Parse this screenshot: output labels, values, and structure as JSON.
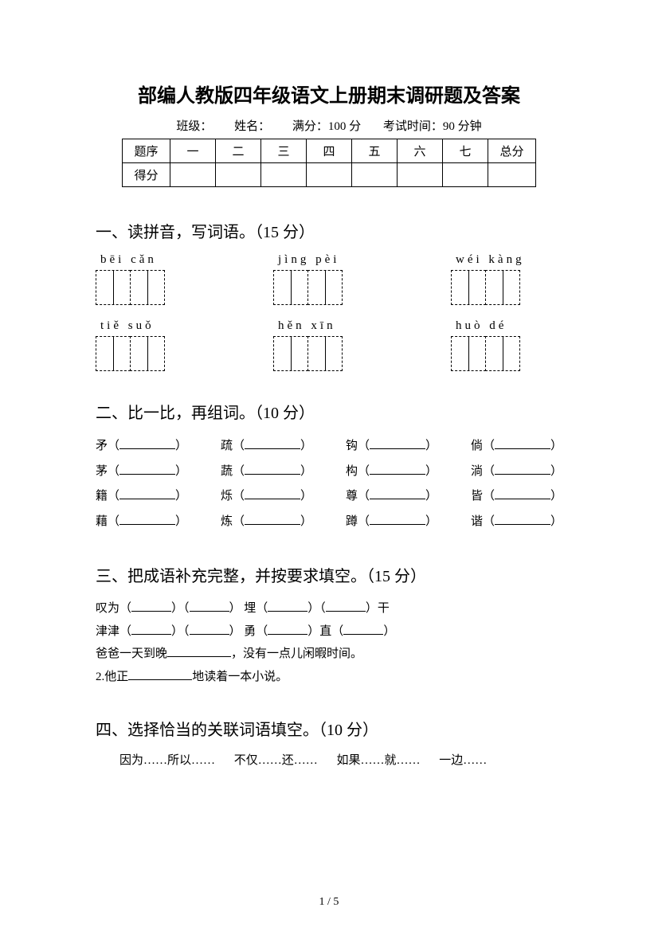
{
  "title": "部编人教版四年级语文上册期末调研题及答案",
  "meta": {
    "class_label": "班级：",
    "name_label": "姓名：",
    "fullmark_label": "满分：100 分",
    "time_label": "考试时间：90 分钟"
  },
  "score_table": {
    "header_label": "题序",
    "cols": [
      "一",
      "二",
      "三",
      "四",
      "五",
      "六",
      "七"
    ],
    "total_label": "总分",
    "score_label": "得分"
  },
  "section1": {
    "heading": "一、读拼音，写词语。（15 分）",
    "pinyin_row1": [
      "bēi  cǎn",
      "jìng  pèi",
      "wéi  kàng"
    ],
    "pinyin_row2": [
      "tiě  suǒ",
      "hěn  xīn",
      "huò  dé"
    ]
  },
  "section2": {
    "heading": "二、比一比，再组词。（10 分）",
    "rows": [
      [
        "矛",
        "疏",
        "钩",
        "倘"
      ],
      [
        "茅",
        "蔬",
        "构",
        "淌"
      ],
      [
        "籍",
        "烁",
        "尊",
        "皆"
      ],
      [
        "藉",
        "炼",
        "蹲",
        "谐"
      ]
    ]
  },
  "section3": {
    "heading": "三、把成语补充完整，并按要求填空。（15 分）",
    "line1_a": "叹为（",
    "line1_b": "）（",
    "line1_c": "）  埋（",
    "line1_d": "）（",
    "line1_e": "）干",
    "line2_a": "津津（",
    "line2_b": "）（",
    "line2_c": "）  勇（",
    "line2_d": "）直（",
    "line2_e": "）",
    "line3_a": "爸爸一天到晚",
    "line3_b": "，没有一点儿闲暇时间。",
    "line4_a": "2.他正",
    "line4_b": "地读着一本小说。"
  },
  "section4": {
    "heading": "四、选择恰当的关联词语填空。（10 分）",
    "options": [
      "因为……所以……",
      "不仅……还……",
      "如果……就……",
      "一边……"
    ]
  },
  "page_number": "1 / 5"
}
